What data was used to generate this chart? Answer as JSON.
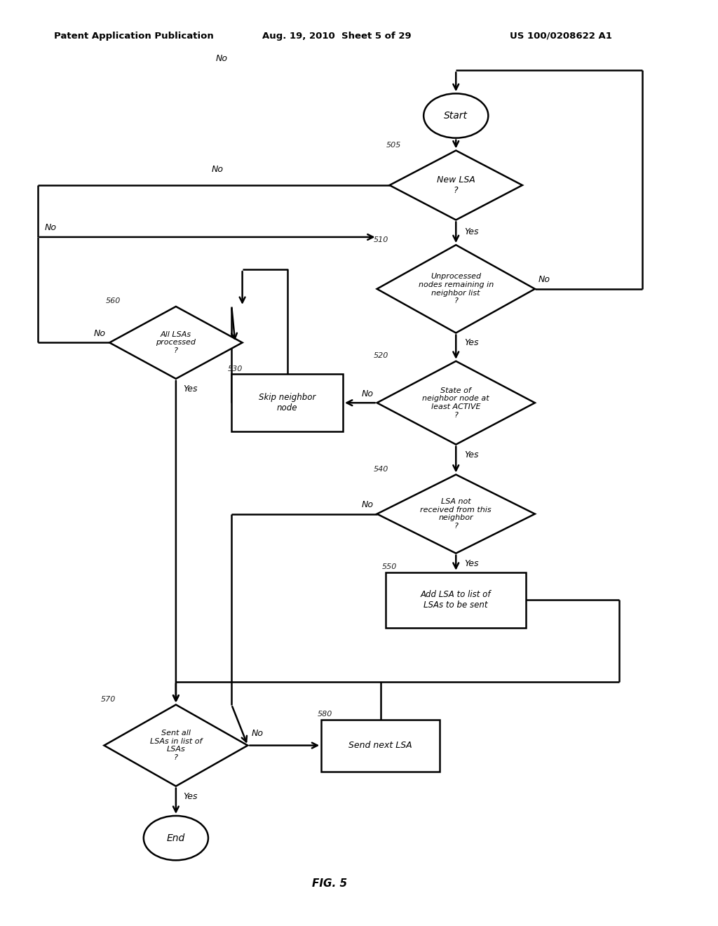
{
  "header_left": "Patent Application Publication",
  "header_mid": "Aug. 19, 2010  Sheet 5 of 29",
  "header_right": "US 100/0208622 A1",
  "fig_label": "FIG. 5",
  "bg_color": "#ffffff",
  "lc": "#000000",
  "lw": 1.8,
  "nodes": {
    "start": {
      "label": "Start",
      "type": "oval"
    },
    "d505": {
      "label": "New LSA\n?",
      "type": "diamond",
      "ref": "505"
    },
    "d510": {
      "label": "Unprocessed\nnodes remaining in\nneighbor list\n?",
      "type": "diamond",
      "ref": "510"
    },
    "d520": {
      "label": "State of\nneighbor node at\nleast ACTIVE\n?",
      "type": "diamond",
      "ref": "520"
    },
    "d540": {
      "label": "LSA not\nreceived from this\nneighbor\n?",
      "type": "diamond",
      "ref": "540"
    },
    "b550": {
      "label": "Add LSA to list of\nLSAs to be sent",
      "type": "rect",
      "ref": "550"
    },
    "d560": {
      "label": "All LSAs\nprocessed\n?",
      "type": "diamond",
      "ref": "560"
    },
    "b530": {
      "label": "Skip neighbor\nnode",
      "type": "rect",
      "ref": "530"
    },
    "d570": {
      "label": "Sent all\nLSAs in list of\nLSAs\n?",
      "type": "diamond",
      "ref": "570"
    },
    "b580": {
      "label": "Send next LSA",
      "type": "rect",
      "ref": "580"
    },
    "end": {
      "label": "End",
      "type": "oval"
    }
  }
}
